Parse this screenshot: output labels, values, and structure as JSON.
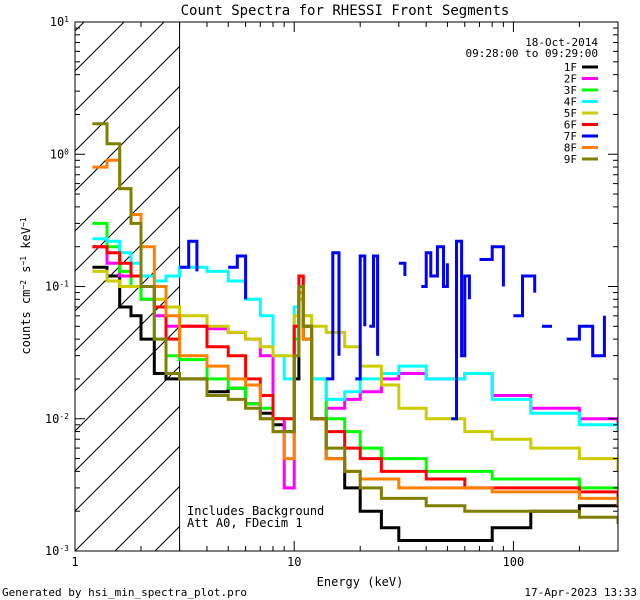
{
  "chart_data": {
    "type": "line",
    "title": "Count Spectra for RHESSI Front Segments",
    "xlabel": "Energy (keV)",
    "ylabel": "counts cm^-2 s^-1 keV^-1",
    "xscale": "log",
    "yscale": "log",
    "xlim": [
      1,
      300
    ],
    "ylim": [
      0.001,
      10
    ],
    "x_ticks": [
      "1",
      "10",
      "100"
    ],
    "y_ticks": [
      "10^-3",
      "10^-2",
      "10^-1",
      "10^0",
      "10^1"
    ],
    "hatched_below_keV": 3,
    "info": {
      "date": "18-Oct-2014",
      "time_range": "09:28:00 to 09:29:00",
      "annotation_line1": "Includes Background",
      "annotation_line2": "Att A0, FDecim 1"
    },
    "footer_left": "Generated by hsi_min_spectra_plot.pro",
    "footer_right": "17-Apr-2023 13:33",
    "series": [
      {
        "name": "1F",
        "color": "#000000",
        "points": [
          [
            1.2,
            0.14
          ],
          [
            1.4,
            0.12
          ],
          [
            1.6,
            0.07
          ],
          [
            1.8,
            0.06
          ],
          [
            2.0,
            0.04
          ],
          [
            2.3,
            0.022
          ],
          [
            2.6,
            0.02
          ],
          [
            3.0,
            0.02
          ],
          [
            4.0,
            0.016
          ],
          [
            5.0,
            0.017
          ],
          [
            6.0,
            0.013
          ],
          [
            7.0,
            0.011
          ],
          [
            8.0,
            0.009
          ],
          [
            9.0,
            0.008
          ],
          [
            10.0,
            0.02
          ],
          [
            10.5,
            0.08
          ],
          [
            11.0,
            0.04
          ],
          [
            12.0,
            0.01
          ],
          [
            14.0,
            0.005
          ],
          [
            17.0,
            0.003
          ],
          [
            20.0,
            0.002
          ],
          [
            25.0,
            0.0015
          ],
          [
            30.0,
            0.0012
          ],
          [
            40.0,
            0.0012
          ],
          [
            60.0,
            0.0012
          ],
          [
            80.0,
            0.0015
          ],
          [
            120.0,
            0.002
          ],
          [
            200.0,
            0.0022
          ],
          [
            300.0,
            0.0025
          ]
        ]
      },
      {
        "name": "2F",
        "color": "#ff00ff",
        "points": [
          [
            1.2,
            0.2
          ],
          [
            1.4,
            0.15
          ],
          [
            1.6,
            0.12
          ],
          [
            1.8,
            0.1
          ],
          [
            2.0,
            0.08
          ],
          [
            2.3,
            0.06
          ],
          [
            2.6,
            0.05
          ],
          [
            3.0,
            0.05
          ],
          [
            4.0,
            0.048
          ],
          [
            5.0,
            0.045
          ],
          [
            6.0,
            0.04
          ],
          [
            7.0,
            0.03
          ],
          [
            8.0,
            0.01
          ],
          [
            9.0,
            0.003
          ],
          [
            10.0,
            0.05
          ],
          [
            10.5,
            0.09
          ],
          [
            11.0,
            0.05
          ],
          [
            12.0,
            0.01
          ],
          [
            14.0,
            0.012
          ],
          [
            17.0,
            0.014
          ],
          [
            20.0,
            0.016
          ],
          [
            25.0,
            0.02
          ],
          [
            30.0,
            0.022
          ],
          [
            40.0,
            0.02
          ],
          [
            60.0,
            0.022
          ],
          [
            80.0,
            0.015
          ],
          [
            120.0,
            0.012
          ],
          [
            200.0,
            0.01
          ],
          [
            300.0,
            0.009
          ]
        ]
      },
      {
        "name": "3F",
        "color": "#00ff00",
        "points": [
          [
            1.2,
            0.3
          ],
          [
            1.4,
            0.2
          ],
          [
            1.6,
            0.13
          ],
          [
            1.8,
            0.1
          ],
          [
            2.0,
            0.08
          ],
          [
            2.3,
            0.04
          ],
          [
            2.6,
            0.03
          ],
          [
            3.0,
            0.028
          ],
          [
            4.0,
            0.02
          ],
          [
            5.0,
            0.017
          ],
          [
            6.0,
            0.013
          ],
          [
            7.0,
            0.012
          ],
          [
            8.0,
            0.01
          ],
          [
            9.0,
            0.01
          ],
          [
            10.0,
            0.04
          ],
          [
            10.5,
            0.1
          ],
          [
            11.0,
            0.05
          ],
          [
            12.0,
            0.02
          ],
          [
            14.0,
            0.01
          ],
          [
            17.0,
            0.008
          ],
          [
            20.0,
            0.006
          ],
          [
            25.0,
            0.005
          ],
          [
            30.0,
            0.005
          ],
          [
            40.0,
            0.004
          ],
          [
            60.0,
            0.004
          ],
          [
            80.0,
            0.0035
          ],
          [
            120.0,
            0.0035
          ],
          [
            200.0,
            0.003
          ],
          [
            300.0,
            0.003
          ]
        ]
      },
      {
        "name": "4F",
        "color": "#00ffff",
        "points": [
          [
            1.2,
            0.23
          ],
          [
            1.4,
            0.22
          ],
          [
            1.6,
            0.18
          ],
          [
            1.8,
            0.15
          ],
          [
            2.0,
            0.12
          ],
          [
            2.3,
            0.11
          ],
          [
            2.6,
            0.12
          ],
          [
            3.0,
            0.14
          ],
          [
            4.0,
            0.13
          ],
          [
            5.0,
            0.11
          ],
          [
            6.0,
            0.08
          ],
          [
            7.0,
            0.06
          ],
          [
            8.0,
            0.03
          ],
          [
            9.0,
            0.02
          ],
          [
            10.0,
            0.07
          ],
          [
            10.5,
            0.1
          ],
          [
            11.0,
            0.06
          ],
          [
            12.0,
            0.02
          ],
          [
            14.0,
            0.014
          ],
          [
            17.0,
            0.016
          ],
          [
            20.0,
            0.02
          ],
          [
            25.0,
            0.022
          ],
          [
            30.0,
            0.025
          ],
          [
            40.0,
            0.02
          ],
          [
            60.0,
            0.022
          ],
          [
            80.0,
            0.014
          ],
          [
            120.0,
            0.011
          ],
          [
            200.0,
            0.009
          ],
          [
            300.0,
            0.008
          ]
        ]
      },
      {
        "name": "5F",
        "color": "#cccc00",
        "points": [
          [
            1.2,
            0.13
          ],
          [
            1.4,
            0.11
          ],
          [
            1.6,
            0.1
          ],
          [
            1.8,
            0.1
          ],
          [
            2.0,
            0.1
          ],
          [
            2.3,
            0.08
          ],
          [
            2.6,
            0.07
          ],
          [
            3.0,
            0.06
          ],
          [
            4.0,
            0.05
          ],
          [
            5.0,
            0.045
          ],
          [
            6.0,
            0.04
          ],
          [
            7.0,
            0.035
          ],
          [
            8.0,
            0.03
          ],
          [
            9.0,
            0.03
          ],
          [
            10.0,
            0.06
          ],
          [
            10.5,
            0.08
          ],
          [
            11.0,
            0.06
          ],
          [
            12.0,
            0.05
          ],
          [
            14.0,
            0.045
          ],
          [
            17.0,
            0.035
          ],
          [
            20.0,
            0.025
          ],
          [
            25.0,
            0.018
          ],
          [
            30.0,
            0.012
          ],
          [
            40.0,
            0.01
          ],
          [
            60.0,
            0.008
          ],
          [
            80.0,
            0.007
          ],
          [
            120.0,
            0.006
          ],
          [
            200.0,
            0.005
          ],
          [
            300.0,
            0.004
          ]
        ]
      },
      {
        "name": "6F",
        "color": "#ff0000",
        "points": [
          [
            1.2,
            0.2
          ],
          [
            1.4,
            0.18
          ],
          [
            1.6,
            0.15
          ],
          [
            1.8,
            0.12
          ],
          [
            2.0,
            0.1
          ],
          [
            2.3,
            0.07
          ],
          [
            2.6,
            0.04
          ],
          [
            3.0,
            0.05
          ],
          [
            4.0,
            0.035
          ],
          [
            5.0,
            0.03
          ],
          [
            6.0,
            0.02
          ],
          [
            7.0,
            0.015
          ],
          [
            8.0,
            0.01
          ],
          [
            9.0,
            0.01
          ],
          [
            10.0,
            0.05
          ],
          [
            10.5,
            0.12
          ],
          [
            11.0,
            0.05
          ],
          [
            12.0,
            0.01
          ],
          [
            14.0,
            0.008
          ],
          [
            17.0,
            0.006
          ],
          [
            20.0,
            0.005
          ],
          [
            25.0,
            0.004
          ],
          [
            30.0,
            0.004
          ],
          [
            40.0,
            0.0035
          ],
          [
            60.0,
            0.003
          ],
          [
            80.0,
            0.003
          ],
          [
            120.0,
            0.003
          ],
          [
            200.0,
            0.0028
          ],
          [
            300.0,
            0.0025
          ]
        ]
      },
      {
        "name": "7F",
        "color": "#0000ff",
        "segments": [
          [
            [
              3.0,
              0.14
            ],
            [
              3.3,
              0.22
            ],
            [
              3.6,
              0.13
            ]
          ],
          [
            [
              5.0,
              0.14
            ],
            [
              5.5,
              0.17
            ],
            [
              6.0,
              0.08
            ]
          ],
          [
            [
              14.0,
              0.02
            ],
            [
              15.0,
              0.18
            ],
            [
              16.0,
              0.03
            ]
          ],
          [
            [
              19.0,
              0.02
            ],
            [
              20.0,
              0.17
            ],
            [
              21.0,
              0.05
            ]
          ],
          [
            [
              22.0,
              0.05
            ],
            [
              23.0,
              0.17
            ],
            [
              24.0,
              0.03
            ]
          ],
          [
            [
              30.0,
              0.15
            ],
            [
              32.0,
              0.12
            ]
          ],
          [
            [
              38.0,
              0.1
            ],
            [
              40.0,
              0.18
            ],
            [
              42.0,
              0.12
            ],
            [
              45.0,
              0.2
            ],
            [
              48.0,
              0.1
            ],
            [
              50.0,
              0.15
            ]
          ],
          [
            [
              52.0,
              0.01
            ],
            [
              55.0,
              0.22
            ],
            [
              58.0,
              0.03
            ],
            [
              60.0,
              0.12
            ],
            [
              63.0,
              0.08
            ]
          ],
          [
            [
              70.0,
              0.16
            ],
            [
              80.0,
              0.2
            ],
            [
              90.0,
              0.1
            ]
          ],
          [
            [
              100.0,
              0.06
            ],
            [
              110.0,
              0.12
            ],
            [
              125.0,
              0.09
            ]
          ],
          [
            [
              135.0,
              0.05
            ],
            [
              150.0,
              0.05
            ]
          ],
          [
            [
              175.0,
              0.04
            ],
            [
              200.0,
              0.05
            ],
            [
              230.0,
              0.03
            ],
            [
              260.0,
              0.06
            ]
          ]
        ]
      },
      {
        "name": "8F",
        "color": "#ff7f00",
        "points": [
          [
            1.2,
            0.8
          ],
          [
            1.4,
            0.9
          ],
          [
            1.6,
            0.55
          ],
          [
            1.8,
            0.35
          ],
          [
            2.0,
            0.2
          ],
          [
            2.3,
            0.1
          ],
          [
            2.6,
            0.06
          ],
          [
            3.0,
            0.03
          ],
          [
            4.0,
            0.025
          ],
          [
            5.0,
            0.02
          ],
          [
            6.0,
            0.018
          ],
          [
            7.0,
            0.01
          ],
          [
            8.0,
            0.008
          ],
          [
            9.0,
            0.005
          ],
          [
            10.0,
            0.03
          ],
          [
            10.5,
            0.09
          ],
          [
            11.0,
            0.04
          ],
          [
            12.0,
            0.01
          ],
          [
            14.0,
            0.005
          ],
          [
            17.0,
            0.004
          ],
          [
            20.0,
            0.0035
          ],
          [
            25.0,
            0.0035
          ],
          [
            30.0,
            0.003
          ],
          [
            40.0,
            0.003
          ],
          [
            60.0,
            0.003
          ],
          [
            80.0,
            0.0028
          ],
          [
            120.0,
            0.0028
          ],
          [
            200.0,
            0.0025
          ],
          [
            300.0,
            0.0022
          ]
        ]
      },
      {
        "name": "9F",
        "color": "#808000",
        "points": [
          [
            1.2,
            1.7
          ],
          [
            1.4,
            1.2
          ],
          [
            1.6,
            0.55
          ],
          [
            1.8,
            0.3
          ],
          [
            2.0,
            0.1
          ],
          [
            2.3,
            0.04
          ],
          [
            2.6,
            0.022
          ],
          [
            3.0,
            0.02
          ],
          [
            4.0,
            0.015
          ],
          [
            5.0,
            0.014
          ],
          [
            6.0,
            0.012
          ],
          [
            7.0,
            0.01
          ],
          [
            8.0,
            0.008
          ],
          [
            9.0,
            0.008
          ],
          [
            10.0,
            0.03
          ],
          [
            10.5,
            0.1
          ],
          [
            11.0,
            0.05
          ],
          [
            12.0,
            0.01
          ],
          [
            14.0,
            0.006
          ],
          [
            17.0,
            0.004
          ],
          [
            20.0,
            0.003
          ],
          [
            25.0,
            0.0025
          ],
          [
            30.0,
            0.0025
          ],
          [
            40.0,
            0.0022
          ],
          [
            60.0,
            0.002
          ],
          [
            80.0,
            0.002
          ],
          [
            120.0,
            0.002
          ],
          [
            200.0,
            0.0018
          ],
          [
            300.0,
            0.0016
          ]
        ]
      }
    ]
  }
}
